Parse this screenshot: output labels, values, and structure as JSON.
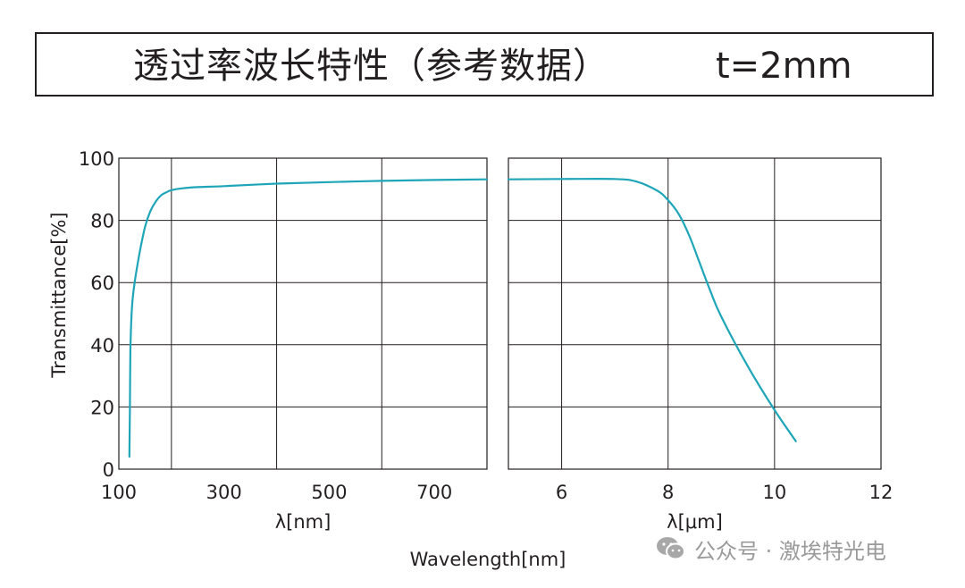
{
  "header": {
    "title": "透过率波长特性（参考数据）",
    "thickness": "t=2mm"
  },
  "watermark": {
    "text": "公众号 · 激埃特光电",
    "icon": "wechat-icon"
  },
  "chart_data": {
    "type": "line",
    "title": "透过率波长特性（参考数据）  t=2mm",
    "ylabel": "Transmittance[%]",
    "xlabel_shared": "Wavelength[nm]",
    "ylim": [
      0,
      100
    ],
    "y_ticks": [
      "0",
      "20",
      "40",
      "60",
      "80",
      "100"
    ],
    "grid": true,
    "line_color": "#1ea6b8",
    "panels": [
      {
        "xlabel": "λ[nm]",
        "xlim": [
          100,
          800
        ],
        "x_ticks": [
          {
            "value": 100,
            "label": "100"
          },
          {
            "value": 300,
            "label": "300"
          },
          {
            "value": 500,
            "label": "500"
          },
          {
            "value": 700,
            "label": "700"
          }
        ],
        "x_grid": [
          200,
          400,
          600
        ],
        "series": [
          {
            "x": [
              120,
              121,
              122,
              125,
              130,
              140,
              150,
              160,
              170,
              180,
              190,
              200,
              220,
              250,
              300,
              400,
              500,
              600,
              700,
              800
            ],
            "y": [
              4,
              20,
              38,
              52,
              60,
              70,
              78,
              83,
              86,
              88,
              89,
              89.7,
              90.3,
              90.7,
              91,
              91.8,
              92.3,
              92.7,
              93,
              93.2
            ]
          }
        ]
      },
      {
        "xlabel": "λ[μm]",
        "xlim": [
          5,
          12
        ],
        "x_ticks": [
          {
            "value": 6,
            "label": "6"
          },
          {
            "value": 8,
            "label": "8"
          },
          {
            "value": 10,
            "label": "10"
          },
          {
            "value": 12,
            "label": "12"
          }
        ],
        "x_grid": [
          6,
          8,
          10
        ],
        "series": [
          {
            "x": [
              5,
              6,
              7,
              7.4,
              7.8,
              8.0,
              8.2,
              8.4,
              8.6,
              8.8,
              9.0,
              9.5,
              10.0,
              10.4
            ],
            "y": [
              93.2,
              93.3,
              93.3,
              92.5,
              89.5,
              86.5,
              82,
              75,
              66,
              57,
              49,
              33,
              19,
              9
            ]
          }
        ]
      }
    ]
  }
}
